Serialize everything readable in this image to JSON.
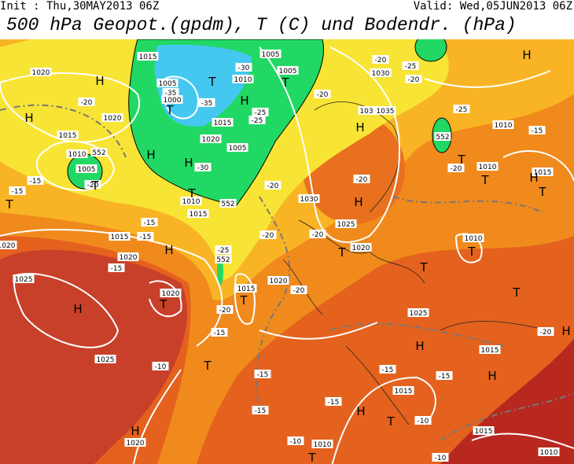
{
  "header": {
    "init": "Init : Thu,30MAY2013 06Z",
    "valid": "Valid: Wed,05JUN2013 06Z",
    "title": "500 hPa Geopot.(gpdm), T (C) und Bodendr. (hPa)"
  },
  "map": {
    "pressure_labels": [
      "1015",
      "1005",
      "1020",
      "1005",
      "-30",
      "1010",
      "1005",
      "-35",
      "1000",
      "-35",
      "-25",
      "-25",
      "-20",
      "-20",
      "1020",
      "1015",
      "1015",
      "1020",
      "1005",
      "1010",
      "552",
      "1005",
      "-30",
      "-15",
      "-20",
      "-15",
      "-20",
      "1010",
      "1015",
      "552",
      "-20",
      "1030",
      "-25",
      "-20",
      "103",
      "1035",
      "-25",
      "1010",
      "-15",
      "552",
      "-20",
      "1010",
      "1015",
      "-20",
      "1030",
      "1025",
      "-20",
      "-20",
      "1020",
      "-15",
      "1015",
      "-15",
      "1020",
      "-15",
      "1010",
      "-25",
      "552",
      "1020",
      "1015",
      "-20",
      "1025",
      "1020",
      "-20",
      "-15",
      "1025",
      "-20",
      "1015",
      "1025",
      "-10",
      "-15",
      "-15",
      "1015",
      "-15",
      "-15",
      "-15",
      "-10",
      "1015",
      "1020",
      "-10",
      "1010",
      "-10",
      "1010",
      "1020"
    ],
    "centers": [
      "H",
      "H",
      "T",
      "H",
      "T",
      "T",
      "H",
      "H",
      "T",
      "T",
      "T",
      "H",
      "H",
      "T",
      "H",
      "T",
      "T",
      "H",
      "T",
      "H",
      "T",
      "T",
      "T",
      "H",
      "T",
      "T",
      "H",
      "T",
      "H",
      "H",
      "H",
      "T",
      "H",
      "T"
    ]
  }
}
